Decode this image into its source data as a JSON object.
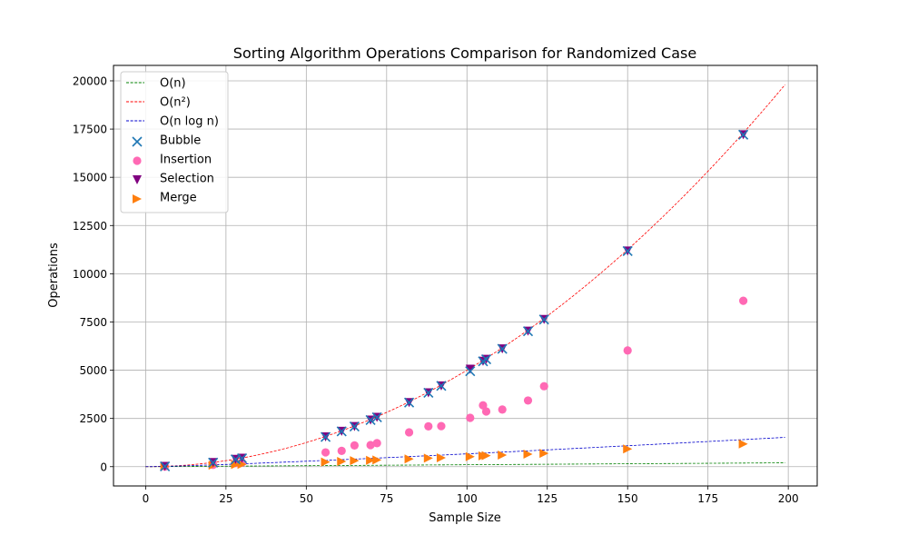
{
  "chart_data": {
    "type": "scatter",
    "title": "Sorting Algorithm Operations Comparison for Randomized Case",
    "xlabel": "Sample Size",
    "ylabel": "Operations",
    "xlim": [
      -10,
      209
    ],
    "ylim": [
      -1000,
      20800
    ],
    "x_ticks": [
      0,
      25,
      50,
      75,
      100,
      125,
      150,
      175,
      200
    ],
    "y_ticks": [
      0,
      2500,
      5000,
      7500,
      10000,
      12500,
      15000,
      17500,
      20000
    ],
    "grid": true,
    "legend_position": "top-left",
    "reference_curves": [
      {
        "name": "O(n)",
        "formula": "n",
        "style": "dashed",
        "color": "#008000"
      },
      {
        "name": "O(n²)",
        "formula": "n^2/2",
        "style": "dashed",
        "color": "#ff0000"
      },
      {
        "name": "O(n log n)",
        "formula": "n*log2(n)",
        "style": "dashed",
        "color": "#0000cc"
      }
    ],
    "curve_x_range": [
      0,
      199
    ],
    "series": [
      {
        "name": "Bubble",
        "marker": "x",
        "color": "#1f77b4",
        "points": [
          [
            6,
            15
          ],
          [
            21,
            210
          ],
          [
            28,
            378
          ],
          [
            30,
            435
          ],
          [
            56,
            1540
          ],
          [
            61,
            1830
          ],
          [
            65,
            2080
          ],
          [
            70,
            2415
          ],
          [
            72,
            2556
          ],
          [
            82,
            3321
          ],
          [
            88,
            3828
          ],
          [
            92,
            4186
          ],
          [
            101,
            4950
          ],
          [
            105,
            5460
          ],
          [
            106,
            5565
          ],
          [
            111,
            6105
          ],
          [
            119,
            7021
          ],
          [
            124,
            7626
          ],
          [
            150,
            11175
          ],
          [
            186,
            17205
          ]
        ]
      },
      {
        "name": "Insertion",
        "marker": "circle",
        "color": "#ff69b4",
        "points": [
          [
            6,
            8
          ],
          [
            21,
            95
          ],
          [
            28,
            190
          ],
          [
            30,
            210
          ],
          [
            56,
            740
          ],
          [
            61,
            820
          ],
          [
            65,
            1100
          ],
          [
            70,
            1120
          ],
          [
            72,
            1220
          ],
          [
            82,
            1780
          ],
          [
            88,
            2090
          ],
          [
            92,
            2100
          ],
          [
            101,
            2530
          ],
          [
            105,
            3180
          ],
          [
            106,
            2860
          ],
          [
            111,
            2960
          ],
          [
            119,
            3430
          ],
          [
            124,
            4170
          ],
          [
            150,
            6020
          ],
          [
            186,
            8600
          ]
        ]
      },
      {
        "name": "Selection",
        "marker": "triangle-down",
        "color": "#800080",
        "points": [
          [
            6,
            15
          ],
          [
            21,
            210
          ],
          [
            28,
            378
          ],
          [
            30,
            435
          ],
          [
            56,
            1540
          ],
          [
            61,
            1830
          ],
          [
            65,
            2080
          ],
          [
            70,
            2415
          ],
          [
            72,
            2556
          ],
          [
            82,
            3321
          ],
          [
            88,
            3828
          ],
          [
            92,
            4186
          ],
          [
            101,
            5050
          ],
          [
            105,
            5460
          ],
          [
            106,
            5565
          ],
          [
            111,
            6105
          ],
          [
            119,
            7021
          ],
          [
            124,
            7626
          ],
          [
            150,
            11175
          ],
          [
            186,
            17205
          ]
        ]
      },
      {
        "name": "Merge",
        "marker": "triangle-right",
        "color": "#ff7f0e",
        "points": [
          [
            6,
            10
          ],
          [
            21,
            75
          ],
          [
            28,
            110
          ],
          [
            30,
            120
          ],
          [
            56,
            240
          ],
          [
            61,
            270
          ],
          [
            65,
            310
          ],
          [
            70,
            330
          ],
          [
            72,
            350
          ],
          [
            82,
            400
          ],
          [
            88,
            440
          ],
          [
            92,
            460
          ],
          [
            101,
            520
          ],
          [
            105,
            560
          ],
          [
            106,
            570
          ],
          [
            111,
            600
          ],
          [
            119,
            650
          ],
          [
            124,
            690
          ],
          [
            150,
            920
          ],
          [
            186,
            1180
          ]
        ]
      }
    ]
  }
}
